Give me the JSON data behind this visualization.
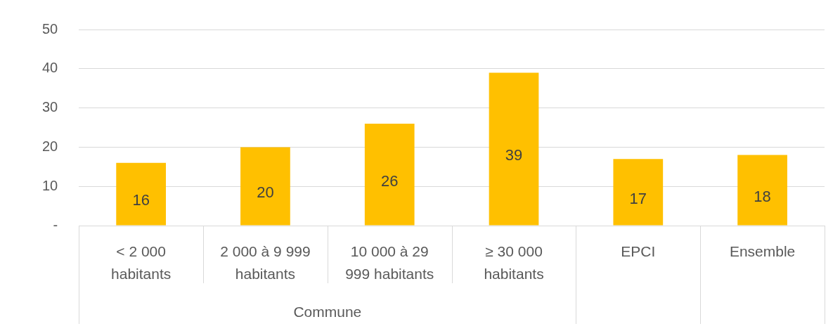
{
  "chart_data": {
    "type": "bar",
    "categories": [
      "< 2 000 habitants",
      "2 000 à 9 999 habitants",
      "10 000 à 29 999 habitants",
      "≥ 30 000 habitants",
      "EPCI",
      "Ensemble"
    ],
    "values": [
      16,
      20,
      26,
      39,
      17,
      18
    ],
    "color": "#ffc000",
    "ylim": [
      0,
      50
    ],
    "yticks": [
      {
        "value": 0,
        "label": "-"
      },
      10,
      20,
      30,
      40,
      50
    ],
    "grid": "y",
    "data_labels": true,
    "annotations": [
      "Commune"
    ]
  }
}
